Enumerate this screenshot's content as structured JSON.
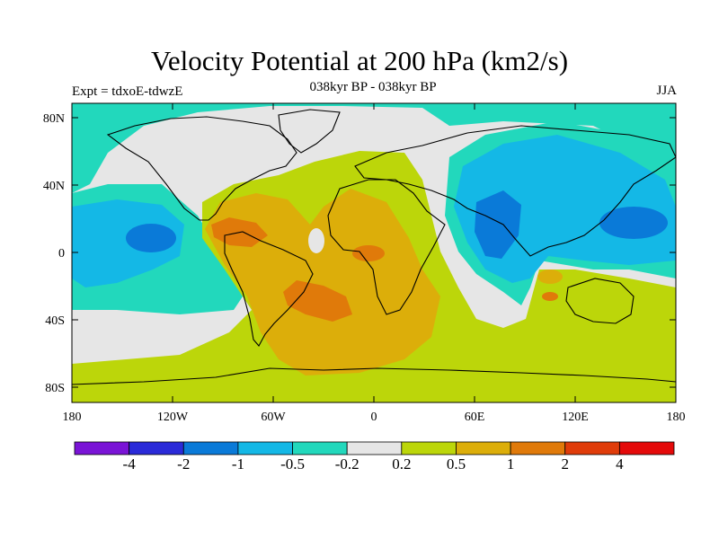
{
  "header": {
    "title": "Velocity Potential at 200 hPa (km2/s)",
    "subtitle": "038kyr BP - 038kyr BP",
    "expt": "Expt = tdxoE-tdwzE",
    "season": "JJA"
  },
  "axes": {
    "x_ticks": [
      "180",
      "120W",
      "60W",
      "0",
      "60E",
      "120E",
      "180"
    ],
    "y_ticks": [
      "80N",
      "40N",
      "0",
      "40S",
      "80S"
    ]
  },
  "colorbar": {
    "labels": [
      "-4",
      "-2",
      "-1",
      "-0.5",
      "-0.2",
      "0.2",
      "0.5",
      "1",
      "2",
      "4"
    ],
    "colors": [
      "#7a14d6",
      "#2a2ad8",
      "#0a7ad8",
      "#14b8e6",
      "#22d8bc",
      "#e6e6e6",
      "#bcd60a",
      "#dcae0a",
      "#e07a0a",
      "#e03c0a",
      "#e40a0a"
    ]
  },
  "map_colors": {
    "ocean_base": "#e6e6e6",
    "teal": "#22d8bc",
    "cyan": "#14b8e6",
    "blue": "#0a7ad8",
    "yellow_green": "#bcd60a",
    "gold": "#dcae0a",
    "orange": "#e07a0a"
  }
}
